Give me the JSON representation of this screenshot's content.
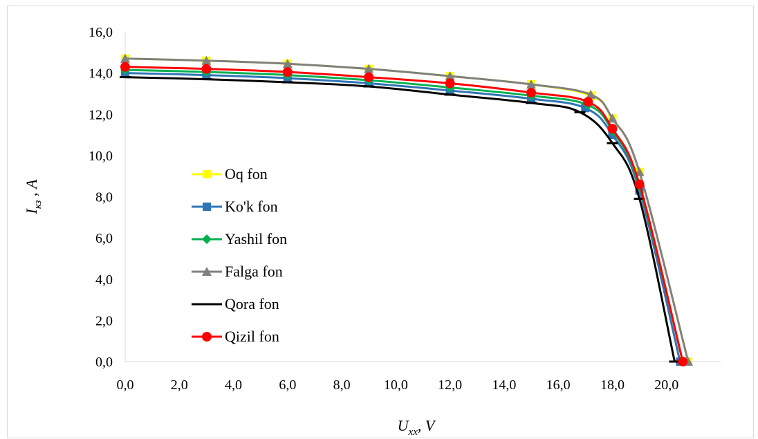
{
  "chart_data": {
    "type": "line",
    "title": "",
    "xlabel": {
      "main": "U",
      "sub": "xx",
      "unit": ", V"
    },
    "ylabel": {
      "main": "I",
      "sub": "кз",
      "unit": " , A"
    },
    "xlim": [
      0,
      22
    ],
    "ylim": [
      0,
      16
    ],
    "x_ticks": [
      "0,0",
      "2,0",
      "4,0",
      "6,0",
      "8,0",
      "10,0",
      "12,0",
      "14,0",
      "16,0",
      "18,0",
      "20,0"
    ],
    "y_ticks": [
      "0,0",
      "2,0",
      "4,0",
      "6,0",
      "8,0",
      "10,0",
      "12,0",
      "14,0",
      "16,0"
    ],
    "grid": false,
    "legend_placement": "left-center",
    "series": [
      {
        "name": "Oq fon",
        "color": "#ffff00",
        "marker": "square",
        "x": [
          0,
          3,
          6,
          9,
          12,
          15,
          17.2,
          18,
          19,
          20.8
        ],
        "y": [
          14.7,
          14.6,
          14.45,
          14.2,
          13.85,
          13.45,
          12.9,
          11.8,
          9.2,
          0
        ]
      },
      {
        "name": "Ko'k fon",
        "color": "#2e75b6",
        "marker": "square",
        "x": [
          0,
          3,
          6,
          9,
          12,
          15,
          17.0,
          18,
          19,
          20.5
        ],
        "y": [
          14.0,
          13.9,
          13.75,
          13.5,
          13.15,
          12.75,
          12.3,
          11.0,
          8.3,
          0
        ]
      },
      {
        "name": "Yashil fon",
        "color": "#00b050",
        "marker": "diamond",
        "x": [
          0,
          3,
          6,
          9,
          12,
          15,
          17.1,
          18,
          19,
          20.6
        ],
        "y": [
          14.15,
          14.05,
          13.9,
          13.65,
          13.3,
          12.9,
          12.45,
          11.2,
          8.5,
          0
        ]
      },
      {
        "name": "Falga fon",
        "color": "#808080",
        "marker": "triangle",
        "x": [
          0,
          3,
          6,
          9,
          12,
          15,
          17.2,
          18,
          19,
          20.8
        ],
        "y": [
          14.7,
          14.6,
          14.45,
          14.2,
          13.85,
          13.45,
          12.95,
          11.8,
          9.2,
          0
        ]
      },
      {
        "name": "Qora fon",
        "color": "#000000",
        "marker": "dash",
        "x": [
          0,
          3,
          6,
          9,
          12,
          15,
          16.8,
          18,
          19,
          20.3
        ],
        "y": [
          13.8,
          13.7,
          13.55,
          13.35,
          12.95,
          12.55,
          12.1,
          10.6,
          7.9,
          0
        ]
      },
      {
        "name": "Qizil fon",
        "color": "#ff0000",
        "marker": "circle",
        "x": [
          0,
          3,
          6,
          9,
          12,
          15,
          17.1,
          18,
          19,
          20.6
        ],
        "y": [
          14.3,
          14.2,
          14.05,
          13.8,
          13.5,
          13.05,
          12.6,
          11.3,
          8.6,
          0
        ]
      }
    ]
  }
}
